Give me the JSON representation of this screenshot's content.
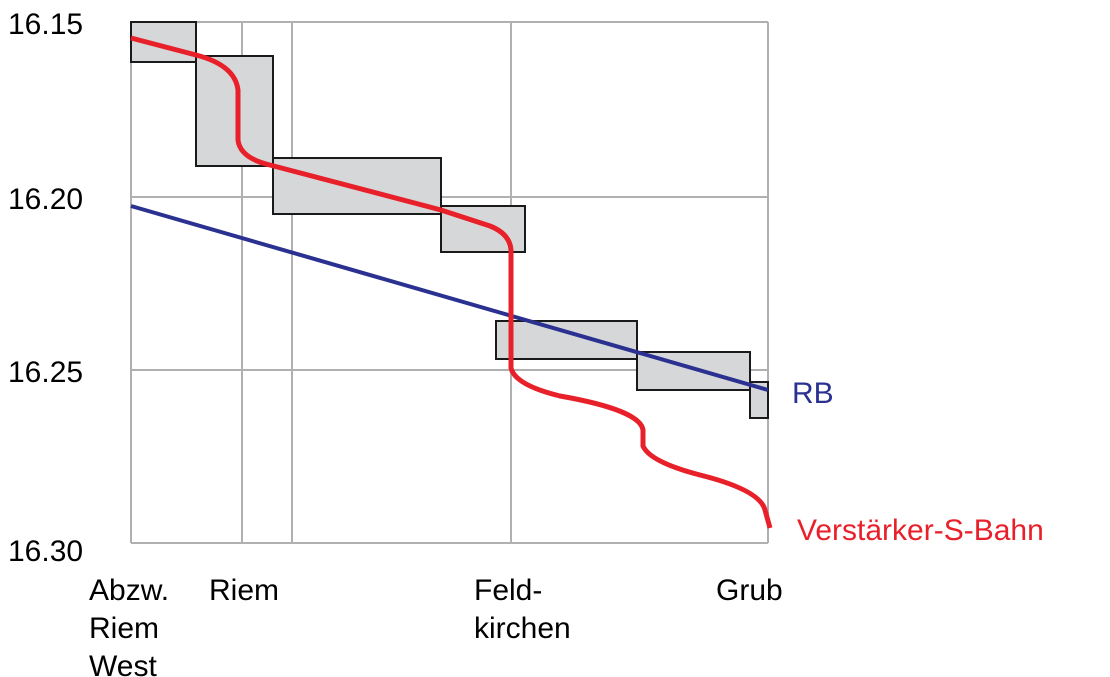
{
  "y_axis": {
    "ticks": [
      "16.15",
      "16.20",
      "16.25",
      "16.30"
    ]
  },
  "stations": [
    {
      "lines": [
        "Abzw.",
        "Riem",
        "West"
      ]
    },
    {
      "lines": [
        "Riem"
      ]
    },
    {
      "lines": [
        "Feld-",
        "kirchen"
      ]
    },
    {
      "lines": [
        "Grub"
      ]
    }
  ],
  "trains": [
    {
      "name": "RB"
    },
    {
      "name": "Verstärker-S-Bahn"
    }
  ]
}
